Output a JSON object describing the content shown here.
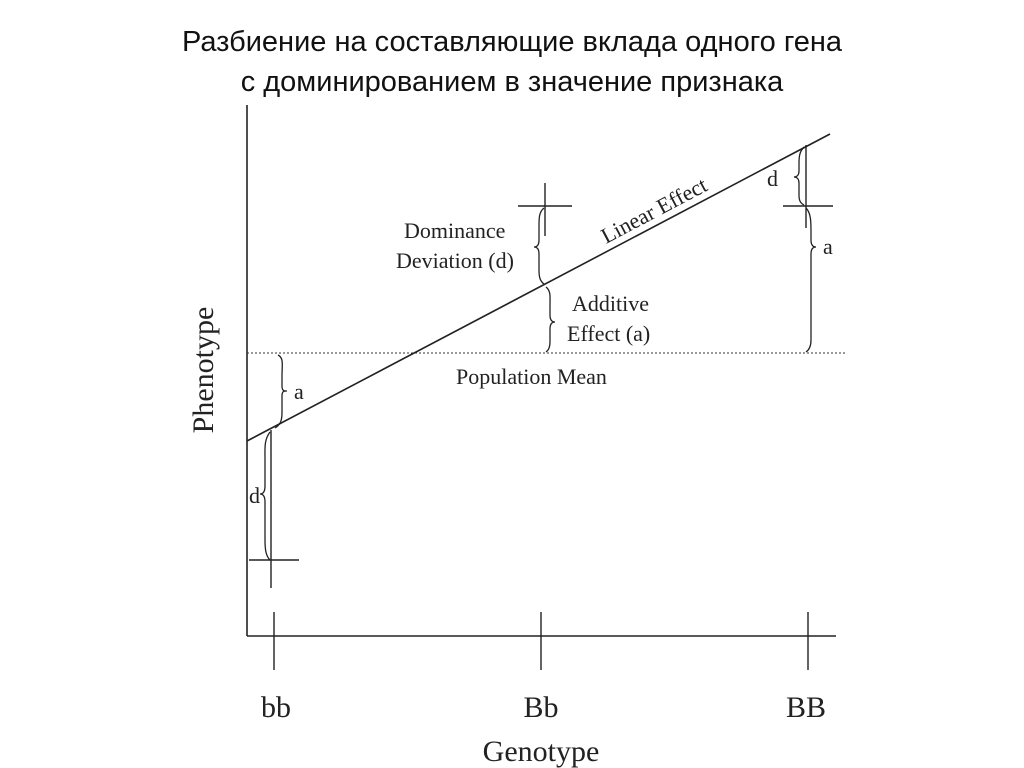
{
  "title": {
    "line1": "Разбиение на составляющие вклада одного гена",
    "line2": "с доминированием в значение признака"
  },
  "axes": {
    "ylabel": "Phenotype",
    "xlabel": "Genotype",
    "genotypes": [
      "bb",
      "Bb",
      "BB"
    ]
  },
  "labels": {
    "linear_effect": "Linear Effect",
    "population_mean": "Population Mean",
    "dominance_line1": "Dominance",
    "dominance_line2": "Deviation (d)",
    "additive_line1": "Additive",
    "additive_line2": "Effect (a)",
    "a_left": "a",
    "d_left": "d",
    "a_right": "a",
    "d_right": "d"
  }
}
